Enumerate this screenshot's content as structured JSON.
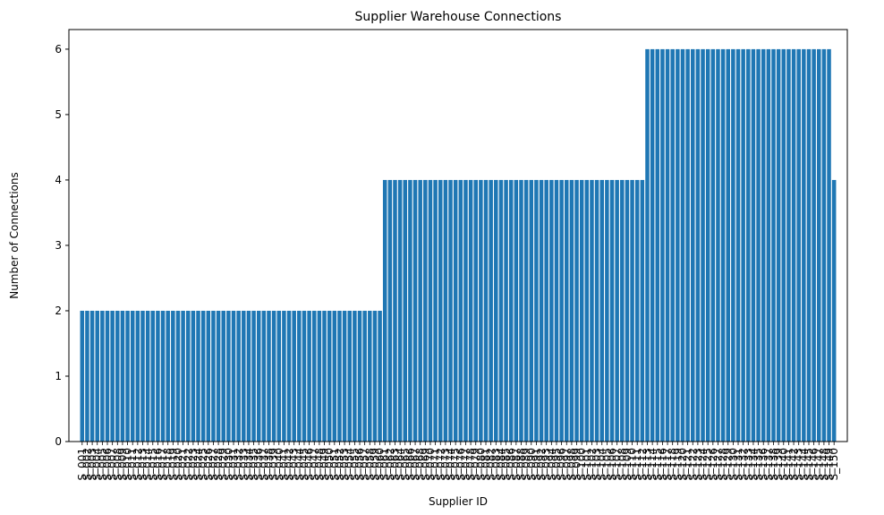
{
  "chart_data": {
    "type": "bar",
    "title": "Supplier Warehouse Connections",
    "xlabel": "Supplier ID",
    "ylabel": "Number of Connections",
    "ylim": [
      0,
      6.3
    ],
    "yticks": [
      "0",
      "1",
      "2",
      "3",
      "4",
      "5",
      "6"
    ],
    "grid": false,
    "bar_color": "#1f77b4",
    "categories": [
      "S_001",
      "S_002",
      "S_003",
      "S_004",
      "S_005",
      "S_006",
      "S_007",
      "S_008",
      "S_009",
      "S_010",
      "S_011",
      "S_012",
      "S_013",
      "S_014",
      "S_015",
      "S_016",
      "S_017",
      "S_018",
      "S_019",
      "S_020",
      "S_021",
      "S_022",
      "S_023",
      "S_024",
      "S_025",
      "S_026",
      "S_027",
      "S_028",
      "S_029",
      "S_030",
      "S_031",
      "S_032",
      "S_033",
      "S_034",
      "S_035",
      "S_036",
      "S_037",
      "S_038",
      "S_039",
      "S_040",
      "S_041",
      "S_042",
      "S_043",
      "S_044",
      "S_045",
      "S_046",
      "S_047",
      "S_048",
      "S_049",
      "S_050",
      "S_051",
      "S_052",
      "S_053",
      "S_054",
      "S_055",
      "S_056",
      "S_057",
      "S_058",
      "S_059",
      "S_060",
      "S_061",
      "S_062",
      "S_063",
      "S_064",
      "S_065",
      "S_066",
      "S_067",
      "S_068",
      "S_069",
      "S_070",
      "S_071",
      "S_072",
      "S_073",
      "S_074",
      "S_075",
      "S_076",
      "S_077",
      "S_078",
      "S_079",
      "S_080",
      "S_081",
      "S_082",
      "S_083",
      "S_084",
      "S_085",
      "S_086",
      "S_087",
      "S_088",
      "S_089",
      "S_090",
      "S_091",
      "S_092",
      "S_093",
      "S_094",
      "S_095",
      "S_096",
      "S_097",
      "S_098",
      "S_099",
      "S_100",
      "S_101",
      "S_102",
      "S_103",
      "S_104",
      "S_105",
      "S_106",
      "S_107",
      "S_108",
      "S_109",
      "S_110",
      "S_111",
      "S_112",
      "S_113",
      "S_114",
      "S_115",
      "S_116",
      "S_117",
      "S_118",
      "S_119",
      "S_120",
      "S_121",
      "S_122",
      "S_123",
      "S_124",
      "S_125",
      "S_126",
      "S_127",
      "S_128",
      "S_129",
      "S_130",
      "S_131",
      "S_132",
      "S_133",
      "S_134",
      "S_135",
      "S_136",
      "S_137",
      "S_138",
      "S_139",
      "S_140",
      "S_141",
      "S_142",
      "S_143",
      "S_144",
      "S_145",
      "S_146",
      "S_147",
      "S_148",
      "S_149",
      "S_150"
    ],
    "values": [
      2,
      2,
      2,
      2,
      2,
      2,
      2,
      2,
      2,
      2,
      2,
      2,
      2,
      2,
      2,
      2,
      2,
      2,
      2,
      2,
      2,
      2,
      2,
      2,
      2,
      2,
      2,
      2,
      2,
      2,
      2,
      2,
      2,
      2,
      2,
      2,
      2,
      2,
      2,
      2,
      2,
      2,
      2,
      2,
      2,
      2,
      2,
      2,
      2,
      2,
      2,
      2,
      2,
      2,
      2,
      2,
      2,
      2,
      2,
      2,
      4,
      4,
      4,
      4,
      4,
      4,
      4,
      4,
      4,
      4,
      4,
      4,
      4,
      4,
      4,
      4,
      4,
      4,
      4,
      4,
      4,
      4,
      4,
      4,
      4,
      4,
      4,
      4,
      4,
      4,
      4,
      4,
      4,
      4,
      4,
      4,
      4,
      4,
      4,
      4,
      4,
      4,
      4,
      4,
      4,
      4,
      4,
      4,
      4,
      4,
      4,
      4,
      6,
      6,
      6,
      6,
      6,
      6,
      6,
      6,
      6,
      6,
      6,
      6,
      6,
      6,
      6,
      6,
      6,
      6,
      6,
      6,
      6,
      6,
      6,
      6,
      6,
      6,
      6,
      6,
      6,
      6,
      6,
      6,
      6,
      6,
      6,
      6,
      6,
      4
    ]
  }
}
